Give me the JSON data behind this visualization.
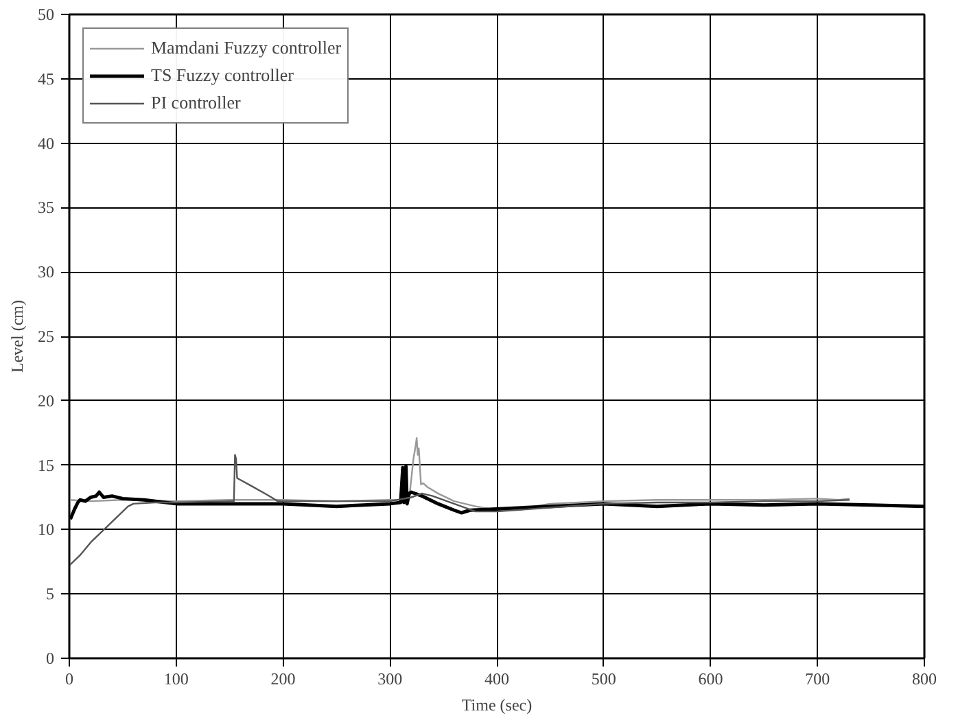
{
  "chart_data": {
    "type": "line",
    "xlabel": "Time (sec)",
    "ylabel": "Level (cm)",
    "xlim": [
      0,
      800
    ],
    "ylim": [
      0,
      50
    ],
    "xticks": [
      0,
      100,
      200,
      300,
      400,
      500,
      600,
      700,
      800
    ],
    "yticks": [
      0,
      5,
      10,
      15,
      20,
      25,
      30,
      35,
      40,
      45,
      50
    ],
    "grid": true,
    "legend": "top left",
    "line_style": "solid",
    "marker": "none",
    "series": [
      {
        "name": "Mamdani Fuzzy controller",
        "color": "#999999",
        "x": [
          0,
          20,
          50,
          100,
          150,
          200,
          250,
          300,
          310,
          318,
          322,
          324,
          325,
          326,
          327,
          329,
          331,
          335,
          345,
          360,
          380,
          400,
          420,
          450,
          500,
          550,
          600,
          650,
          700,
          720,
          730
        ],
        "values": [
          12.3,
          12.2,
          12.3,
          12.2,
          12.3,
          12.3,
          12.2,
          12.3,
          12.3,
          12.4,
          15.5,
          16.5,
          17.1,
          15.8,
          16.3,
          13.5,
          13.6,
          13.3,
          12.8,
          12.2,
          11.8,
          11.5,
          11.6,
          12,
          12.2,
          12.3,
          12.3,
          12.3,
          12.4,
          12.3,
          12.4
        ]
      },
      {
        "name": "TS Fuzzy controller",
        "color": "#000000",
        "x": [
          1,
          3,
          5,
          8,
          10,
          15,
          20,
          25,
          28,
          32,
          40,
          50,
          70,
          100,
          150,
          200,
          250,
          300,
          310,
          312,
          313,
          315,
          316,
          318,
          320,
          330,
          345,
          360,
          367,
          375,
          400,
          450,
          500,
          550,
          600,
          650,
          700,
          750,
          800
        ],
        "values": [
          10.8,
          11.2,
          11.6,
          12.1,
          12.3,
          12.2,
          12.5,
          12.6,
          12.9,
          12.5,
          12.6,
          12.4,
          12.3,
          12.0,
          12.0,
          12.0,
          11.8,
          12.0,
          12.1,
          14.8,
          12.1,
          14.9,
          12.0,
          12.8,
          12.9,
          12.6,
          12.0,
          11.5,
          11.3,
          11.5,
          11.6,
          11.8,
          12.0,
          11.8,
          12.0,
          11.9,
          12.0,
          11.9,
          11.8
        ]
      },
      {
        "name": "PI controller",
        "color": "#555555",
        "x": [
          0,
          10,
          20,
          30,
          40,
          50,
          55,
          60,
          80,
          100,
          150,
          154,
          155,
          156,
          157,
          159,
          170,
          185,
          195,
          250,
          300,
          320,
          330,
          340,
          360,
          380,
          400,
          450,
          500,
          550,
          600,
          650,
          700,
          730
        ],
        "values": [
          7.2,
          8.0,
          9.0,
          9.8,
          10.6,
          11.4,
          11.8,
          12.0,
          12.1,
          12.1,
          12.2,
          12.2,
          15.8,
          15.5,
          14.0,
          13.9,
          13.4,
          12.7,
          12.2,
          12.2,
          12.2,
          12.5,
          12.8,
          12.6,
          12.0,
          11.4,
          11.4,
          11.7,
          12.0,
          12.1,
          12.1,
          12.2,
          12.2,
          12.3
        ]
      }
    ]
  }
}
